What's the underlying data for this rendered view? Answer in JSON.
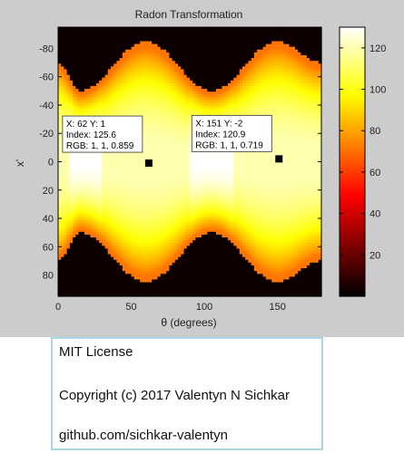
{
  "figure": {
    "background": "#cccccc",
    "colormap": "hot"
  },
  "chart_data": {
    "type": "heatmap",
    "title": "Radon Transformation",
    "xlabel": "θ (degrees)",
    "ylabel": "x'",
    "xlim": [
      0,
      180
    ],
    "ylim": [
      -95,
      95
    ],
    "y_reversed": true,
    "x_ticks": [
      0,
      50,
      100,
      150
    ],
    "y_ticks": [
      -80,
      -60,
      -40,
      -20,
      0,
      20,
      40,
      60,
      80
    ],
    "colorbar": {
      "min": 0,
      "max": 130,
      "ticks": [
        20,
        40,
        60,
        80,
        100,
        120
      ]
    },
    "envelope": {
      "description_free": true,
      "max_abs_x_at_theta": [
        {
          "theta": 0,
          "max_abs_x": 70
        },
        {
          "theta": 15,
          "max_abs_x": 50
        },
        {
          "theta": 60,
          "max_abs_x": 85
        },
        {
          "theta": 105,
          "max_abs_x": 50
        },
        {
          "theta": 150,
          "max_abs_x": 85
        },
        {
          "theta": 180,
          "max_abs_x": 70
        }
      ]
    },
    "datatips": [
      {
        "x": 62,
        "y": 1,
        "index": 125.6,
        "rgb": "1, 1, 0.859",
        "line1": "X: 62 Y: 1",
        "line2": "Index: 125.6",
        "line3": "RGB: 1, 1, 0.859"
      },
      {
        "x": 151,
        "y": -2,
        "index": 120.9,
        "rgb": "1, 1, 0.719",
        "line1": "X: 151 Y: -2",
        "line2": "Index: 120.9",
        "line3": "RGB: 1, 1, 0.719"
      }
    ]
  },
  "license": {
    "line1": "MIT License",
    "line2": "Copyright (c) 2017 Valentyn N Sichkar",
    "line3": "github.com/sichkar-valentyn",
    "border_color": "#a8d8e6"
  }
}
